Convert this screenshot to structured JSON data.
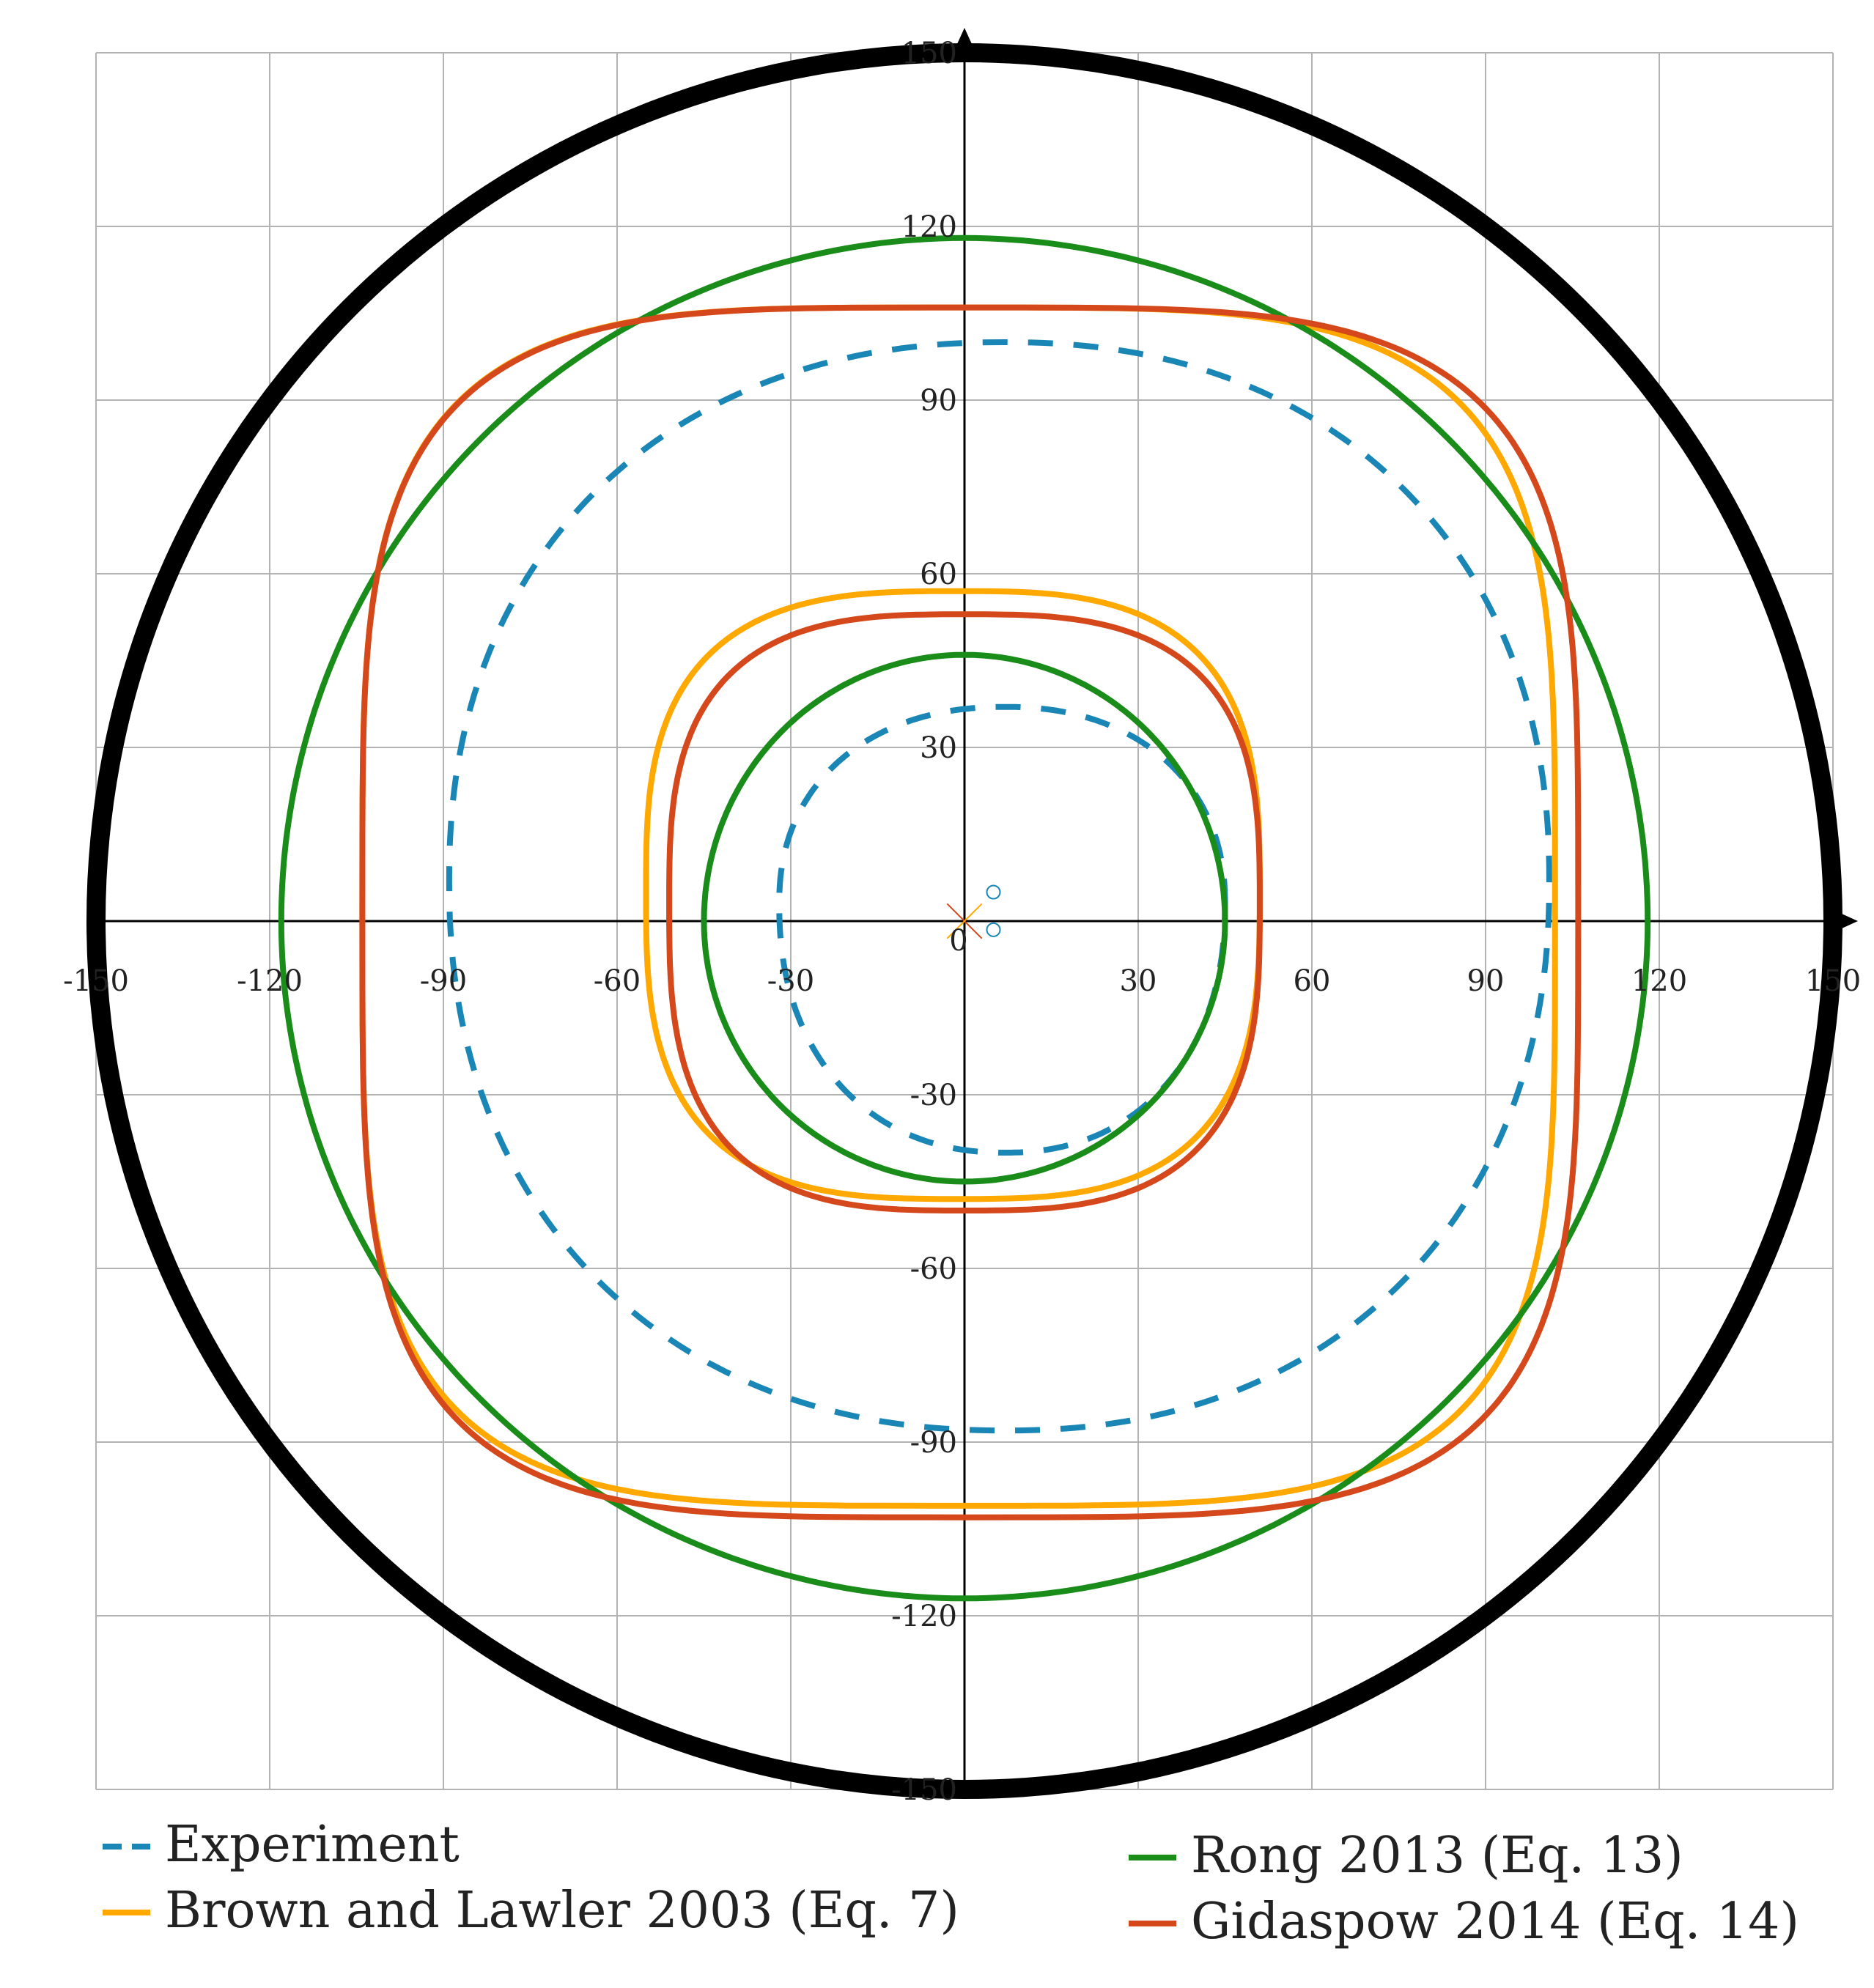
{
  "chart_data": {
    "type": "line",
    "title": "",
    "xlabel": "",
    "ylabel": "",
    "xlim": [
      -150,
      150
    ],
    "ylim": [
      -150,
      150
    ],
    "grid": true,
    "x_ticks": [
      "-150",
      "-120",
      "-90",
      "-60",
      "-30",
      "0",
      "30",
      "60",
      "90",
      "120",
      "150"
    ],
    "y_ticks": [
      "150",
      "120",
      "90",
      "60",
      "30",
      "-30",
      "-60",
      "-90",
      "-120",
      "-150"
    ],
    "boundary": {
      "shape": "circle",
      "center": [
        0,
        0
      ],
      "radius": 150,
      "color": "#000000"
    },
    "legend_position": "bottom",
    "series": [
      {
        "name": "Experiment",
        "color": "#1a86b5",
        "dashed": true,
        "loops": [
          {
            "cx": 7,
            "cy": 3,
            "left": -32,
            "right": 45,
            "top": 37,
            "bottom": -40,
            "power": 2.2
          },
          {
            "cx": 7,
            "cy": 7,
            "left": -89,
            "right": 101,
            "top": 100,
            "bottom": -88,
            "power": 2.2
          }
        ]
      },
      {
        "name": "Brown and Lawler 2003 (Eq. 7)",
        "color": "#ffa800",
        "dashed": false,
        "loops": [
          {
            "cx": -1,
            "cy": 5,
            "left": -55,
            "right": 51,
            "top": 57,
            "bottom": -48,
            "power": 3.0
          },
          {
            "cx": -1,
            "cy": 2,
            "left": -104,
            "right": 102,
            "top": 106,
            "bottom": -101,
            "power": 4.0
          }
        ]
      },
      {
        "name": "Rong 2013 (Eq. 13)",
        "color": "#1a8c1a",
        "dashed": false,
        "loops": [
          {
            "cx": 0,
            "cy": 0,
            "left": -45,
            "right": 45,
            "top": 46,
            "bottom": -45,
            "power": 2.0
          },
          {
            "cx": 0,
            "cy": 0,
            "left": -118,
            "right": 118,
            "top": 118,
            "bottom": -117,
            "power": 2.0
          }
        ]
      },
      {
        "name": "Gidaspow 2014 (Eq. 14)",
        "color": "#d4481c",
        "dashed": false,
        "loops": [
          {
            "cx": 0,
            "cy": 3,
            "left": -51,
            "right": 51,
            "top": 53,
            "bottom": -50,
            "power": 3.0
          },
          {
            "cx": 0,
            "cy": 2,
            "left": -104,
            "right": 106,
            "top": 106,
            "bottom": -103,
            "power": 4.0
          }
        ]
      }
    ]
  },
  "colors": {
    "grid": "#b3b3b3",
    "axis": "#000000",
    "background": "#ffffff"
  }
}
